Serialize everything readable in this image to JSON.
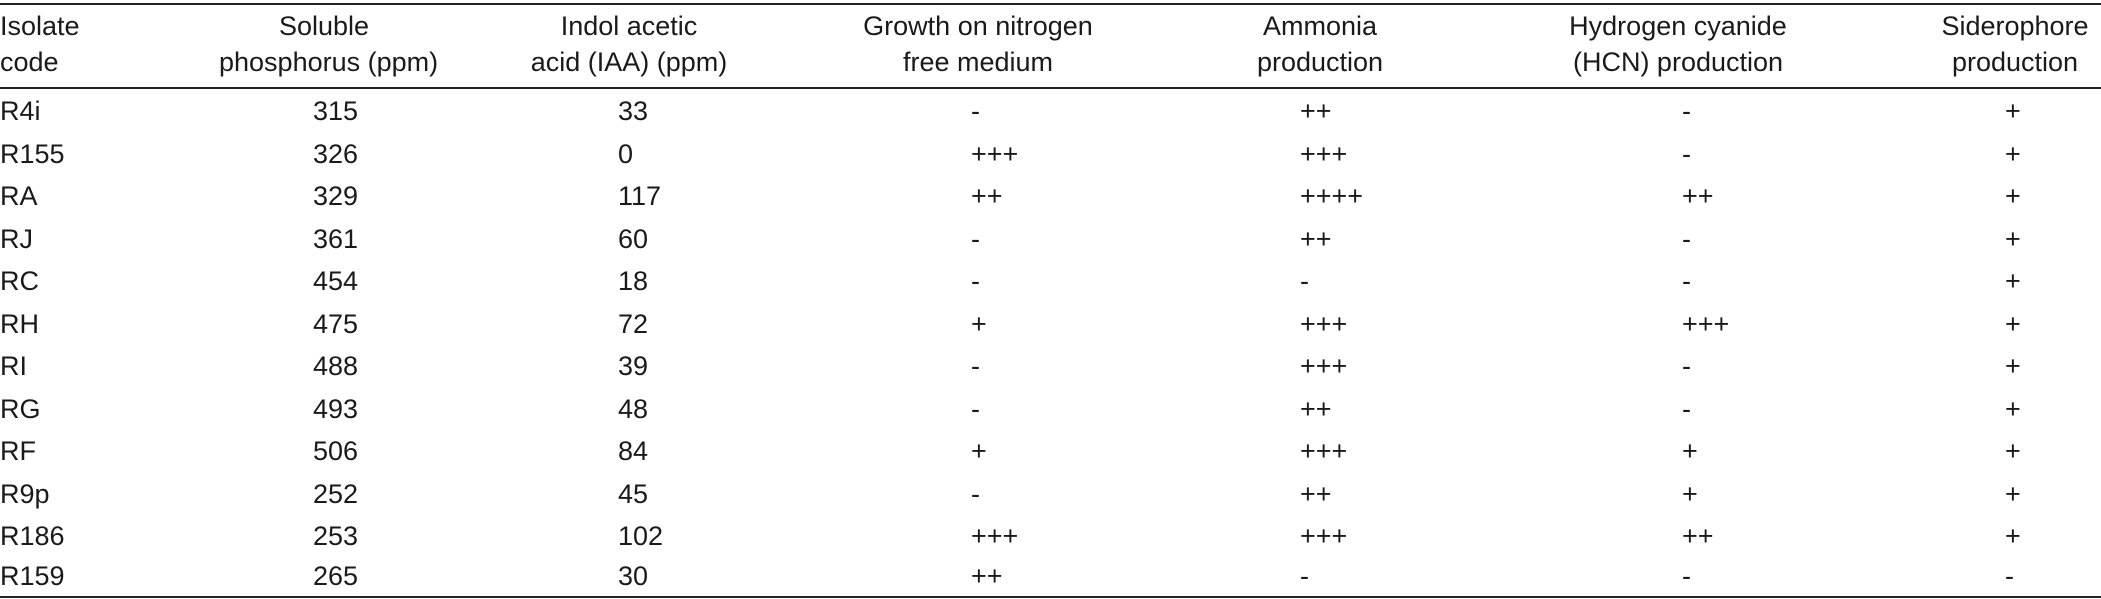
{
  "table": {
    "headers": [
      {
        "line1": "Isolate",
        "line2": "code"
      },
      {
        "line1": "Soluble",
        "line2": "phosphorus (ppm)"
      },
      {
        "line1": "Indol acetic",
        "line2": "acid (IAA) (ppm)"
      },
      {
        "line1": "Growth on nitrogen",
        "line2": "free medium"
      },
      {
        "line1": "Ammonia",
        "line2": "production"
      },
      {
        "line1": "Hydrogen cyanide",
        "line2": "(HCN) production"
      },
      {
        "line1": "Siderophore",
        "line2": "production"
      }
    ],
    "rows": [
      [
        "R4i",
        "315",
        "33",
        "-",
        "++",
        "-",
        "+"
      ],
      [
        "R155",
        "326",
        "0",
        "+++",
        "+++",
        "-",
        "+"
      ],
      [
        "RA",
        "329",
        "117",
        "++",
        "++++",
        "++",
        "+"
      ],
      [
        "RJ",
        "361",
        "60",
        "-",
        "++",
        "-",
        "+"
      ],
      [
        "RC",
        "454",
        "18",
        "-",
        "-",
        "-",
        "+"
      ],
      [
        "RH",
        "475",
        "72",
        "+",
        "+++",
        "+++",
        "+"
      ],
      [
        "RI",
        "488",
        "39",
        "-",
        "+++",
        "-",
        "+"
      ],
      [
        "RG",
        "493",
        "48",
        "-",
        "++",
        "-",
        "+"
      ],
      [
        "RF",
        "506",
        "84",
        "+",
        "+++",
        "+",
        "+"
      ],
      [
        "R9p",
        "252",
        "45",
        "-",
        "++",
        "+",
        "+"
      ],
      [
        "R186",
        "253",
        "102",
        "+++",
        "+++",
        "++",
        "+"
      ],
      [
        "R159",
        "265",
        "30",
        "++",
        "-",
        "-",
        "-"
      ]
    ]
  }
}
